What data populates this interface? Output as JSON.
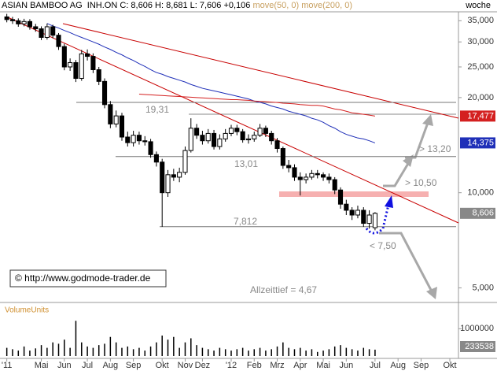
{
  "chart_data": {
    "type": "candlestick",
    "title": "ASIAN BAMBOO AG  INH.ON",
    "subtitle": "C: 8,606 H: 8,681 L: 7,606 +0,106",
    "period": "woche",
    "categories": [
      "'11",
      null,
      null,
      null,
      null,
      null,
      "Mai",
      null,
      null,
      null,
      "Jun",
      null,
      null,
      null,
      "Jul",
      null,
      null,
      null,
      "Aug",
      null,
      null,
      null,
      "Sep",
      null,
      null,
      null,
      null,
      "Okt",
      null,
      null,
      null,
      "Nov",
      null,
      null,
      "Dez",
      null,
      null,
      null,
      null,
      "'12",
      null,
      null,
      null,
      "Feb",
      null,
      null,
      null,
      "Mrz",
      null,
      null,
      null,
      "Apr",
      null,
      null,
      null,
      "Mai",
      null,
      null,
      null,
      "Jun",
      null,
      null,
      null,
      null,
      "Jul",
      null,
      null,
      null,
      "Aug",
      null,
      null,
      null,
      "Sep",
      null,
      null,
      null,
      null,
      "Okt",
      null
    ],
    "open": [
      36.0,
      35.3,
      35.0,
      34.2,
      34.8,
      33.5,
      33.0,
      31.0,
      33.5,
      31.5,
      29.0,
      25.0,
      25.8,
      23.0,
      27.5,
      27.0,
      24.5,
      22.5,
      19.0,
      16.5,
      17.5,
      15.0,
      14.4,
      15.2,
      14.6,
      14.5,
      13.2,
      12.5,
      10.0,
      11.4,
      11.2,
      11.6,
      13.6,
      16.0,
      15.2,
      14.6,
      15.4,
      14.0,
      14.8,
      15.4,
      16.0,
      15.6,
      14.7,
      14.8,
      15.2,
      16.0,
      15.4,
      14.6,
      13.8,
      12.2,
      12.0,
      11.2,
      11.0,
      11.2,
      11.5,
      11.4,
      11.2,
      11.0,
      10.2,
      9.2,
      8.8,
      8.5,
      8.8,
      8.0,
      7.75,
      null,
      null,
      null,
      null,
      null,
      null,
      null,
      null,
      null,
      null,
      null,
      null,
      null,
      null
    ],
    "high": [
      36.8,
      36.0,
      35.6,
      35.5,
      35.4,
      34.2,
      33.6,
      34.3,
      34.0,
      32.0,
      29.6,
      26.6,
      26.3,
      28.3,
      28.4,
      27.6,
      25.0,
      23.0,
      19.5,
      18.2,
      17.9,
      15.6,
      15.7,
      15.6,
      15.1,
      14.8,
      13.5,
      12.8,
      11.8,
      11.9,
      12.0,
      14.0,
      17.2,
      16.5,
      15.7,
      15.9,
      15.8,
      15.3,
      15.9,
      16.4,
      16.4,
      15.9,
      15.3,
      15.6,
      16.5,
      16.3,
      15.7,
      14.9,
      14.0,
      12.7,
      12.3,
      11.6,
      11.5,
      11.8,
      11.8,
      11.6,
      11.5,
      11.2,
      10.4,
      9.5,
      9.0,
      9.1,
      9.0,
      8.8,
      8.681,
      null,
      null,
      null,
      null,
      null,
      null,
      null,
      null,
      null,
      null,
      null,
      null,
      null,
      null
    ],
    "low": [
      34.6,
      34.2,
      33.5,
      33.6,
      32.8,
      32.3,
      30.4,
      30.5,
      30.8,
      28.3,
      24.4,
      24.3,
      22.4,
      22.6,
      26.2,
      23.9,
      21.9,
      18.5,
      16.0,
      16.1,
      14.6,
      14.0,
      14.0,
      14.2,
      14.1,
      12.9,
      12.1,
      7.8,
      9.7,
      10.9,
      10.8,
      11.4,
      13.4,
      14.8,
      14.2,
      14.3,
      13.7,
      13.7,
      14.5,
      15.1,
      15.2,
      14.4,
      14.3,
      14.5,
      15.0,
      15.0,
      14.2,
      13.4,
      11.9,
      11.6,
      10.9,
      9.8,
      10.7,
      11.0,
      11.1,
      10.9,
      10.7,
      9.9,
      8.9,
      8.5,
      8.2,
      8.3,
      7.8,
      7.7,
      7.606,
      null,
      null,
      null,
      null,
      null,
      null,
      null,
      null,
      null,
      null,
      null,
      null,
      null,
      null
    ],
    "close": [
      35.3,
      35.0,
      34.2,
      34.8,
      33.5,
      33.0,
      31.0,
      33.5,
      31.5,
      29.0,
      25.0,
      25.8,
      23.0,
      27.5,
      27.0,
      24.5,
      22.5,
      19.0,
      16.5,
      17.5,
      15.0,
      14.4,
      15.2,
      14.6,
      14.5,
      13.2,
      12.5,
      10.0,
      11.4,
      11.2,
      11.6,
      13.6,
      16.0,
      15.2,
      14.6,
      15.4,
      14.0,
      14.8,
      15.4,
      16.0,
      15.6,
      14.7,
      14.8,
      15.2,
      16.0,
      15.4,
      14.6,
      13.8,
      12.2,
      12.0,
      11.2,
      11.0,
      11.2,
      11.5,
      11.4,
      11.2,
      11.0,
      10.2,
      9.2,
      8.8,
      8.5,
      8.8,
      8.0,
      8.5,
      8.606,
      null,
      null,
      null,
      null,
      null,
      null,
      null,
      null,
      null,
      null,
      null,
      null,
      null,
      null
    ],
    "last_label": "8,606",
    "series": [
      {
        "name": "move(50, 0)",
        "color": "#1f2fb8",
        "last_label": "14,375",
        "values": [
          null,
          null,
          null,
          null,
          null,
          null,
          null,
          34.3,
          33.7,
          33.2,
          32.6,
          32.1,
          31.5,
          31.0,
          30.5,
          30.0,
          29.5,
          28.9,
          28.4,
          27.8,
          27.3,
          26.7,
          26.2,
          25.6,
          25.1,
          24.5,
          24.0,
          23.7,
          23.3,
          23.0,
          22.7,
          22.4,
          22.0,
          21.7,
          21.4,
          21.2,
          21.0,
          20.8,
          20.6,
          20.4,
          20.2,
          20.0,
          19.8,
          19.5,
          19.3,
          19.1,
          18.8,
          18.6,
          18.4,
          18.1,
          17.9,
          17.7,
          17.5,
          17.2,
          17.0,
          16.7,
          16.3,
          16.0,
          15.6,
          15.3,
          15.1,
          14.9,
          14.8,
          14.6,
          14.375,
          null,
          null,
          null,
          null,
          null,
          null,
          null,
          null,
          null,
          null,
          null,
          null,
          null,
          null
        ]
      },
      {
        "name": "move(200, 0)",
        "color": "#d42020",
        "last_label": "17,477",
        "values": [
          null,
          null,
          null,
          null,
          null,
          null,
          null,
          null,
          null,
          null,
          null,
          null,
          null,
          null,
          null,
          null,
          null,
          null,
          null,
          null,
          null,
          null,
          null,
          20.5,
          20.45,
          20.4,
          20.35,
          20.3,
          20.25,
          20.2,
          20.15,
          20.1,
          20.05,
          20.0,
          19.95,
          19.9,
          19.85,
          19.8,
          19.75,
          19.7,
          19.7,
          19.65,
          19.6,
          19.5,
          19.45,
          19.4,
          19.35,
          19.3,
          19.2,
          19.15,
          19.1,
          19.0,
          18.95,
          18.9,
          18.9,
          18.8,
          18.6,
          18.4,
          18.3,
          18.1,
          17.9,
          17.8,
          17.7,
          17.6,
          17.477,
          null,
          null,
          null,
          null,
          null,
          null,
          null,
          null,
          null,
          null,
          null,
          null,
          null,
          null
        ]
      }
    ],
    "levels": [
      {
        "value": 19.31,
        "label": "19,31"
      },
      {
        "value": 13.01,
        "label": "13,01"
      },
      {
        "value": 7.812,
        "label": "7,812"
      }
    ],
    "annotations": [
      "> 13,20",
      "> 10,50",
      "< 7,50",
      "Allzeittief  =  4,67",
      "© http://www.godmode-trader.de"
    ],
    "log_scale": true,
    "ylim": [
      4.6,
      38
    ],
    "yticks": [
      {
        "value": 35,
        "label": "35,000"
      },
      {
        "value": 30,
        "label": "30,000"
      },
      {
        "value": 25,
        "label": "25,000"
      },
      {
        "value": 20,
        "label": "20,000"
      },
      {
        "value": 10,
        "label": "10,000"
      },
      {
        "value": 5,
        "label": "5,000"
      }
    ],
    "volume": {
      "title": "VolumeUnits",
      "ylim": [
        0,
        1500000
      ],
      "yticks": [
        1000000
      ],
      "values": [
        300000,
        250000,
        200000,
        350000,
        200000,
        280000,
        400000,
        300000,
        500000,
        450000,
        600000,
        300000,
        1290000,
        500000,
        350000,
        300000,
        400000,
        450000,
        700000,
        500000,
        300000,
        350000,
        250000,
        300000,
        200000,
        350000,
        500000,
        750000,
        600000,
        700000,
        300000,
        500000,
        650000,
        400000,
        300000,
        250000,
        200000,
        300000,
        250000,
        200000,
        250000,
        300000,
        200000,
        250000,
        300000,
        200000,
        250000,
        350000,
        500000,
        300000,
        250000,
        300000,
        200000,
        250000,
        150000,
        200000,
        250000,
        350000,
        400000,
        300000,
        250000,
        200000,
        300000,
        250000,
        233538,
        null,
        null,
        null,
        null,
        null,
        null,
        null,
        null,
        null,
        null,
        null,
        null,
        null,
        null
      ]
    }
  }
}
